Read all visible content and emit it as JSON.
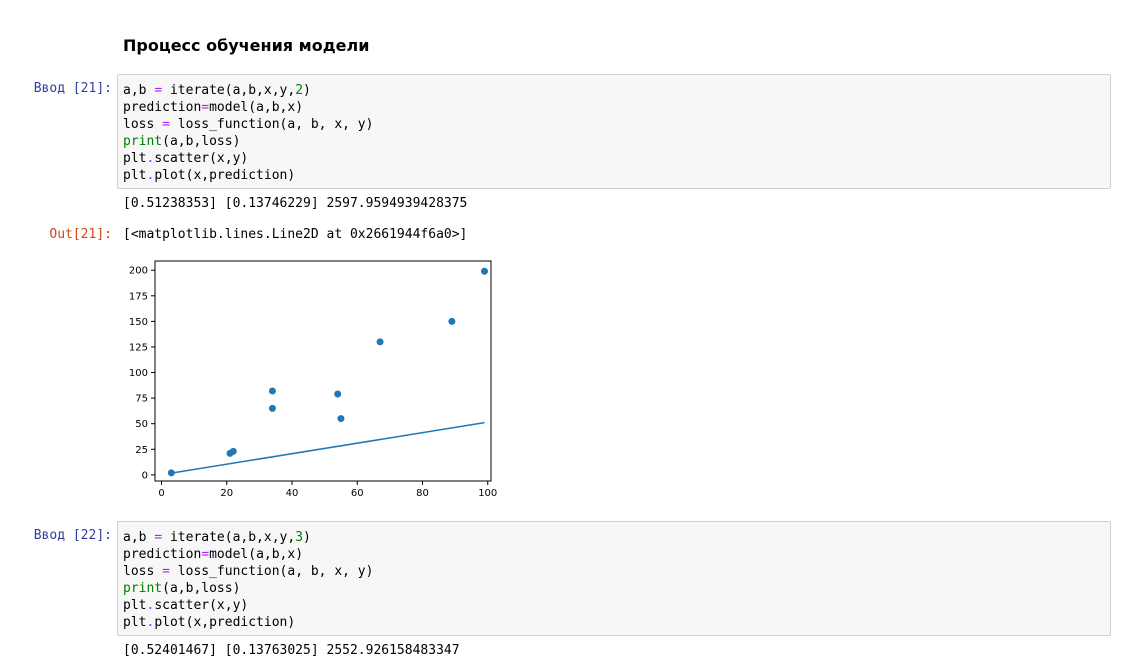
{
  "section_heading": "Процесс обучения модели",
  "cells": [
    {
      "in_prompt": "Ввод [21]:",
      "code": [
        {
          "parts": [
            {
              "t": "a,b "
            },
            {
              "t": "=",
              "c": "op"
            },
            {
              "t": " iterate(a,b,x,y,"
            },
            {
              "t": "2",
              "c": "num"
            },
            {
              "t": ")"
            }
          ]
        },
        {
          "parts": [
            {
              "t": "prediction"
            },
            {
              "t": "=",
              "c": "op"
            },
            {
              "t": "model(a,b,x)"
            }
          ]
        },
        {
          "parts": [
            {
              "t": "loss "
            },
            {
              "t": "=",
              "c": "op"
            },
            {
              "t": " loss_function(a, b, x, y)"
            }
          ]
        },
        {
          "parts": [
            {
              "t": "print",
              "c": "kw-builtin"
            },
            {
              "t": "(a,b,loss)"
            }
          ]
        },
        {
          "parts": [
            {
              "t": "plt"
            },
            {
              "t": ".",
              "c": "op"
            },
            {
              "t": "scatter(x,y)"
            }
          ]
        },
        {
          "parts": [
            {
              "t": "plt"
            },
            {
              "t": ".",
              "c": "op"
            },
            {
              "t": "plot(x,prediction)"
            }
          ]
        }
      ],
      "stdout": "[0.51238353] [0.13746229] 2597.9594939428375",
      "out_prompt": "Out[21]:",
      "out_value": "[<matplotlib.lines.Line2D at 0x2661944f6a0>]"
    },
    {
      "in_prompt": "Ввод [22]:",
      "code": [
        {
          "parts": [
            {
              "t": "a,b "
            },
            {
              "t": "=",
              "c": "op"
            },
            {
              "t": " iterate(a,b,x,y,"
            },
            {
              "t": "3",
              "c": "num"
            },
            {
              "t": ")"
            }
          ]
        },
        {
          "parts": [
            {
              "t": "prediction"
            },
            {
              "t": "=",
              "c": "op"
            },
            {
              "t": "model(a,b,x)"
            }
          ]
        },
        {
          "parts": [
            {
              "t": "loss "
            },
            {
              "t": "=",
              "c": "op"
            },
            {
              "t": " loss_function(a, b, x, y)"
            }
          ]
        },
        {
          "parts": [
            {
              "t": "print",
              "c": "kw-builtin"
            },
            {
              "t": "(a,b,loss)"
            }
          ]
        },
        {
          "parts": [
            {
              "t": "plt"
            },
            {
              "t": ".",
              "c": "op"
            },
            {
              "t": "scatter(x,y)"
            }
          ]
        },
        {
          "parts": [
            {
              "t": "plt"
            },
            {
              "t": ".",
              "c": "op"
            },
            {
              "t": "plot(x,prediction)"
            }
          ]
        }
      ],
      "stdout": "[0.52401467] [0.13763025] 2552.926158483347"
    }
  ],
  "chart_data": {
    "type": "scatter",
    "xlim": [
      -2,
      101
    ],
    "ylim": [
      -6,
      209
    ],
    "x_ticks": [
      0,
      20,
      40,
      60,
      80,
      100
    ],
    "y_ticks": [
      0,
      25,
      50,
      75,
      100,
      125,
      150,
      175,
      200
    ],
    "scatter_color": "#1f77b4",
    "line_color": "#1f77b4",
    "points": [
      {
        "x": 3,
        "y": 2
      },
      {
        "x": 21,
        "y": 21
      },
      {
        "x": 22,
        "y": 23
      },
      {
        "x": 34,
        "y": 65
      },
      {
        "x": 34,
        "y": 82
      },
      {
        "x": 54,
        "y": 79
      },
      {
        "x": 55,
        "y": 55
      },
      {
        "x": 67,
        "y": 130
      },
      {
        "x": 89,
        "y": 150
      },
      {
        "x": 99,
        "y": 199
      }
    ],
    "line": [
      {
        "x": 3,
        "y": 1.69
      },
      {
        "x": 99,
        "y": 51.0
      }
    ]
  }
}
